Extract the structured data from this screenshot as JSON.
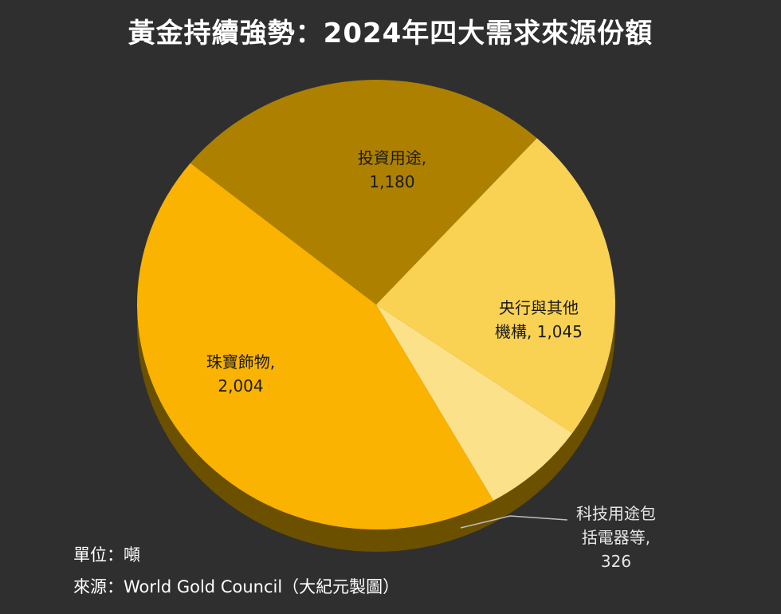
{
  "title": "黃金持續強勢：2024年四大需求來源份額",
  "unit_note": "單位：噸",
  "source_note": "來源：World Gold Council（大紀元製圖）",
  "chart_data": {
    "type": "pie",
    "title": "黃金持續強勢：2024年四大需求來源份額",
    "unit": "噸",
    "slices": [
      {
        "label_lines": [
          "投資用途,",
          "1,180"
        ],
        "name": "投資用途",
        "value": 1180,
        "color": "#ad8000"
      },
      {
        "label_lines": [
          "央行與其他",
          "機構, 1,045"
        ],
        "name": "央行與其他機構",
        "value": 1045,
        "color": "#fad253"
      },
      {
        "label_lines": [
          "科技用途包",
          "括電器等,",
          "326"
        ],
        "name": "科技用途包括電器等",
        "value": 326,
        "color": "#fbe189"
      },
      {
        "label_lines": [
          "珠寶飾物,",
          "2,004"
        ],
        "name": "珠寶飾物",
        "value": 2004,
        "color": "#f9b300"
      }
    ],
    "start_angle_deg": 309,
    "depth_color": "#6b5000",
    "leader_line_color": "#bfbfbf"
  }
}
